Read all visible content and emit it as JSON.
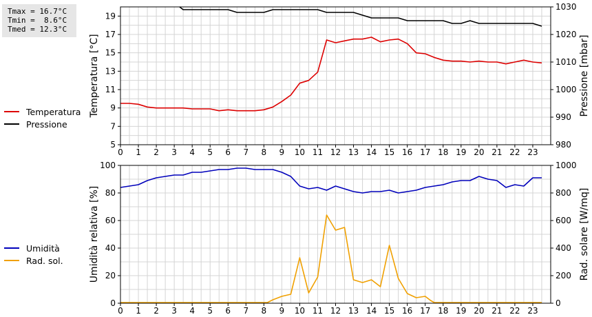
{
  "stats": {
    "tmax": "Tmax = 16.7°C",
    "tmin": "Tmin =  8.6°C",
    "tmed": "Tmed = 12.3°C"
  },
  "legend_top": [
    {
      "label": "Temperatura",
      "color": "#dd0000"
    },
    {
      "label": "Pressione",
      "color": "#000000"
    }
  ],
  "legend_bottom": [
    {
      "label": "Umidità",
      "color": "#0000bb"
    },
    {
      "label": "Rad. sol.",
      "color": "#f0a000"
    }
  ],
  "chart_data": [
    {
      "type": "line",
      "ylabel": "Temperatura [°C]",
      "y2label": "Pressione [mbar]",
      "xlim": [
        0,
        24
      ],
      "ylim": [
        5,
        20
      ],
      "y2lim": [
        980,
        1030
      ],
      "xticks": [
        "0",
        "1",
        "2",
        "3",
        "4",
        "5",
        "6",
        "7",
        "8",
        "9",
        "10",
        "11",
        "12",
        "13",
        "14",
        "15",
        "16",
        "17",
        "18",
        "19",
        "20",
        "21",
        "22",
        "23"
      ],
      "yticks": [
        "5",
        "7",
        "9",
        "11",
        "13",
        "15",
        "17",
        "19"
      ],
      "y2ticks": [
        "980",
        "990",
        "1000",
        "1010",
        "1020",
        "1030"
      ],
      "grid": true,
      "series": [
        {
          "name": "Temperatura",
          "axis": "left",
          "color": "#dd0000",
          "x": [
            0,
            0.5,
            1,
            1.5,
            2,
            2.5,
            3,
            3.5,
            4,
            4.5,
            5,
            5.5,
            6,
            6.5,
            7,
            7.5,
            8,
            8.5,
            9,
            9.5,
            10,
            10.5,
            11,
            11.5,
            12,
            12.5,
            13,
            13.5,
            14,
            14.5,
            15,
            15.5,
            16,
            16.5,
            17,
            17.5,
            18,
            18.5,
            19,
            19.5,
            20,
            20.5,
            21,
            21.5,
            22,
            22.5,
            23,
            23.5
          ],
          "y": [
            9.5,
            9.5,
            9.4,
            9.1,
            9.0,
            9.0,
            9.0,
            9.0,
            8.9,
            8.9,
            8.9,
            8.7,
            8.8,
            8.7,
            8.7,
            8.7,
            8.8,
            9.1,
            9.7,
            10.4,
            11.7,
            12.0,
            12.9,
            16.4,
            16.1,
            16.3,
            16.5,
            16.5,
            16.7,
            16.2,
            16.4,
            16.5,
            16.0,
            15.0,
            14.9,
            14.5,
            14.2,
            14.1,
            14.1,
            14.0,
            14.1,
            14.0,
            14.0,
            13.8,
            14.0,
            14.2,
            14.0,
            13.9
          ]
        },
        {
          "name": "Pressione",
          "axis": "right",
          "color": "#000000",
          "x": [
            3.3,
            3.5,
            4,
            4.5,
            5,
            5.5,
            6,
            6.5,
            7,
            7.5,
            8,
            8.5,
            9,
            9.5,
            10,
            10.5,
            11,
            11.5,
            12,
            12.5,
            13,
            13.5,
            14,
            14.5,
            15,
            15.5,
            16,
            16.5,
            17,
            17.5,
            18,
            18.5,
            19,
            19.5,
            20,
            20.5,
            21,
            21.5,
            22,
            22.5,
            23,
            23.5
          ],
          "y": [
            1030,
            1029,
            1029,
            1029,
            1029,
            1029,
            1029,
            1028,
            1028,
            1028,
            1028,
            1029,
            1029,
            1029,
            1029,
            1029,
            1029,
            1028,
            1028,
            1028,
            1028,
            1027,
            1026,
            1026,
            1026,
            1026,
            1025,
            1025,
            1025,
            1025,
            1025,
            1024,
            1024,
            1025,
            1024,
            1024,
            1024,
            1024,
            1024,
            1024,
            1024,
            1023
          ]
        }
      ]
    },
    {
      "type": "line",
      "ylabel": "Umidità relativa [%]",
      "y2label": "Rad. solare [W/mq]",
      "xlim": [
        0,
        24
      ],
      "ylim": [
        0,
        100
      ],
      "y2lim": [
        0,
        1000
      ],
      "xticks": [
        "0",
        "1",
        "2",
        "3",
        "4",
        "5",
        "6",
        "7",
        "8",
        "9",
        "10",
        "11",
        "12",
        "13",
        "14",
        "15",
        "16",
        "17",
        "18",
        "19",
        "20",
        "21",
        "22",
        "23"
      ],
      "yticks": [
        "0",
        "20",
        "40",
        "60",
        "80",
        "100"
      ],
      "y2ticks": [
        "0",
        "200",
        "400",
        "600",
        "800",
        "1000"
      ],
      "grid": true,
      "series": [
        {
          "name": "Umidità",
          "axis": "left",
          "color": "#0000bb",
          "x": [
            0,
            0.5,
            1,
            1.5,
            2,
            2.5,
            3,
            3.5,
            4,
            4.5,
            5,
            5.5,
            6,
            6.5,
            7,
            7.5,
            8,
            8.5,
            9,
            9.5,
            10,
            10.5,
            11,
            11.5,
            12,
            12.5,
            13,
            13.5,
            14,
            14.5,
            15,
            15.5,
            16,
            16.5,
            17,
            17.5,
            18,
            18.5,
            19,
            19.5,
            20,
            20.5,
            21,
            21.5,
            22,
            22.5,
            23,
            23.5
          ],
          "y": [
            84,
            85,
            86,
            89,
            91,
            92,
            93,
            93,
            95,
            95,
            96,
            97,
            97,
            98,
            98,
            97,
            97,
            97,
            95,
            92,
            85,
            83,
            84,
            82,
            85,
            83,
            81,
            80,
            81,
            81,
            82,
            80,
            81,
            82,
            84,
            85,
            86,
            88,
            89,
            89,
            92,
            90,
            89,
            84,
            86,
            85,
            91,
            91
          ]
        },
        {
          "name": "Rad. sol.",
          "axis": "right",
          "color": "#f0a000",
          "x": [
            0,
            1,
            2,
            3,
            4,
            5,
            6,
            7,
            8,
            8.2,
            8.5,
            9,
            9.5,
            10,
            10.5,
            11,
            11.5,
            12,
            12.5,
            13,
            13.5,
            14,
            14.5,
            15,
            15.5,
            16,
            16.5,
            17,
            17.3,
            17.5,
            18,
            19,
            20,
            21,
            22,
            23,
            23.5
          ],
          "y": [
            5,
            5,
            5,
            5,
            5,
            5,
            5,
            5,
            5,
            5,
            25,
            50,
            65,
            330,
            75,
            190,
            640,
            530,
            550,
            170,
            150,
            170,
            120,
            420,
            180,
            70,
            40,
            50,
            20,
            5,
            5,
            5,
            5,
            5,
            5,
            5,
            5
          ]
        }
      ]
    }
  ]
}
